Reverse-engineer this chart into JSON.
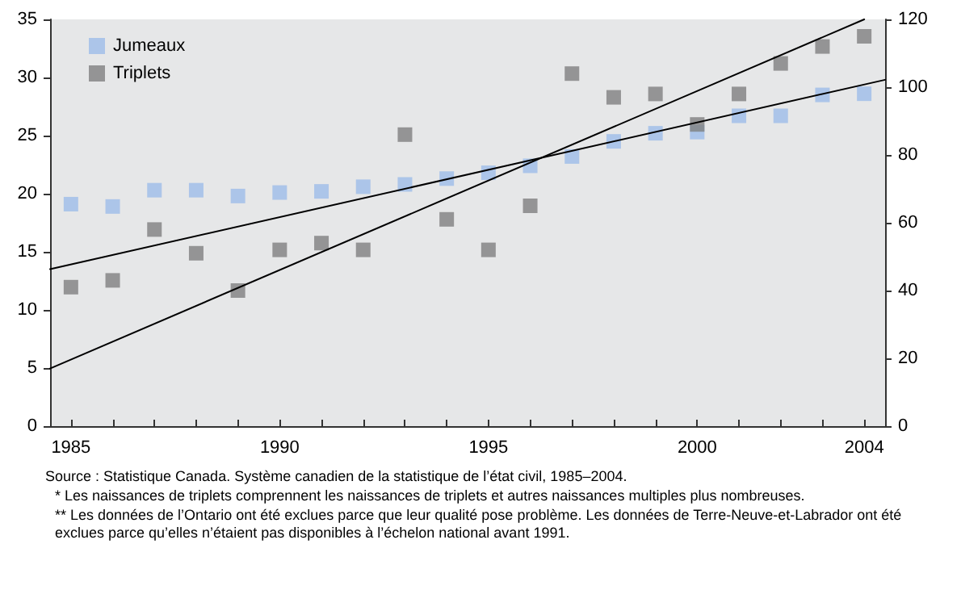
{
  "chart_data": {
    "type": "scatter",
    "marker": "square",
    "legend": "top left",
    "grid": false,
    "x": [
      1985,
      1986,
      1987,
      1988,
      1989,
      1990,
      1991,
      1992,
      1993,
      1994,
      1995,
      1996,
      1997,
      1998,
      1999,
      2000,
      2001,
      2002,
      2003,
      2004
    ],
    "series": [
      {
        "name": "Jumeaux",
        "color": "#9dbde8",
        "values": [
          19.1,
          18.9,
          20.3,
          20.3,
          19.8,
          20.1,
          20.2,
          20.6,
          20.8,
          21.3,
          21.8,
          22.4,
          23.2,
          24.5,
          25.2,
          25.3,
          26.7,
          26.7,
          28.5,
          28.6
        ]
      },
      {
        "name": "Triplets",
        "color": "#808080",
        "axis": "y2",
        "values": [
          41,
          43,
          58,
          51,
          40,
          52,
          54,
          52,
          86,
          61,
          52,
          65,
          104,
          97,
          98,
          89,
          98,
          107,
          112,
          115
        ]
      },
      {
        "type": "line",
        "color": "#000000",
        "marker": "none",
        "x": [
          1984.5,
          2004.5
        ],
        "values": [
          13.5,
          29.8
        ]
      },
      {
        "type": "line",
        "color": "#000000",
        "marker": "none",
        "axis": "y2",
        "x": [
          1984.5,
          2004
        ],
        "values": [
          17,
          120
        ]
      }
    ],
    "xlim": [
      1984.5,
      2004.5
    ],
    "xticks": [
      1985,
      {
        "value": 1986,
        "label": null
      },
      {
        "value": 1987,
        "label": null
      },
      {
        "value": 1988,
        "label": null
      },
      {
        "value": 1989,
        "label": null
      },
      1990,
      {
        "value": 1991,
        "label": null
      },
      {
        "value": 1992,
        "label": null
      },
      {
        "value": 1993,
        "label": null
      },
      {
        "value": 1994,
        "label": null
      },
      1995,
      {
        "value": 1996,
        "label": null
      },
      {
        "value": 1997,
        "label": null
      },
      {
        "value": 1998,
        "label": null
      },
      {
        "value": 1999,
        "label": null
      },
      2000,
      {
        "value": 2001,
        "label": null
      },
      {
        "value": 2002,
        "label": null
      },
      {
        "value": 2003,
        "label": null
      },
      2004
    ],
    "ylim": [
      0,
      35
    ],
    "yticks": [
      0,
      5,
      10,
      15,
      20,
      25,
      30,
      35
    ],
    "y2lim": [
      0,
      120
    ],
    "y2ticks": [
      0,
      20,
      40,
      60,
      80,
      100,
      120
    ],
    "annotations": [
      "Source : Statistique Canada. Système canadien de la statistique de l’état civil, 1985–2004.",
      "*  Les naissances de triplets comprennent les naissances de triplets et autres naissances multiples plus nombreuses.",
      "**  Les données de l’Ontario ont été exclues parce que leur qualité pose problème. Les données de Terre-Neuve-et-Labrador ont été exclues parce qu’elles n’étaient pas disponibles à l’échelon national avant 1991."
    ]
  }
}
